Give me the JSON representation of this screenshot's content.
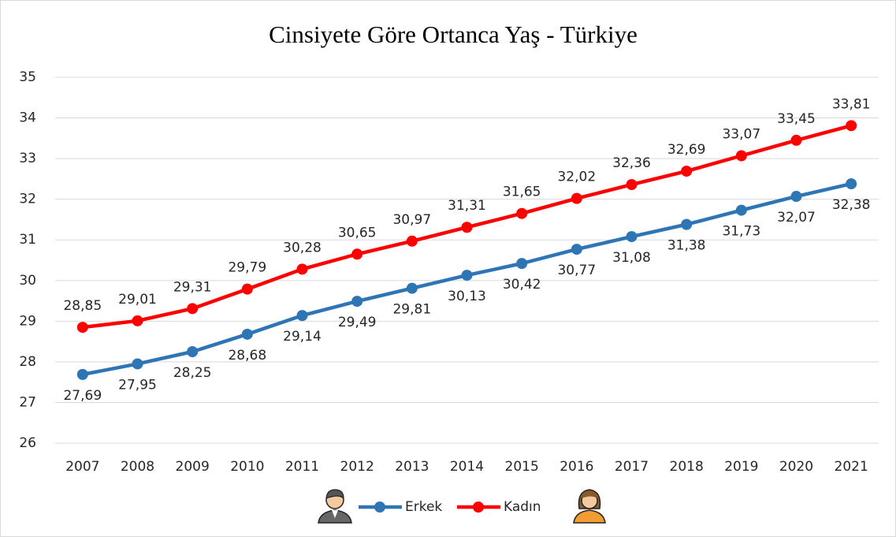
{
  "chart_data": {
    "type": "line",
    "title": "Cinsiyete Göre Ortanca Yaş - Türkiye",
    "categories": [
      "2007",
      "2008",
      "2009",
      "2010",
      "2011",
      "2012",
      "2013",
      "2014",
      "2015",
      "2016",
      "2017",
      "2018",
      "2019",
      "2020",
      "2021"
    ],
    "series": [
      {
        "name": "Erkek",
        "color": "#2e75b6",
        "values": [
          27.69,
          27.95,
          28.25,
          28.68,
          29.14,
          29.49,
          29.81,
          30.13,
          30.42,
          30.77,
          31.08,
          31.38,
          31.73,
          32.07,
          32.38
        ],
        "value_labels": [
          "27,69",
          "27,95",
          "28,25",
          "28,68",
          "29,14",
          "29,49",
          "29,81",
          "30,13",
          "30,42",
          "30,77",
          "31,08",
          "31,38",
          "31,73",
          "32,07",
          "32,38"
        ]
      },
      {
        "name": "Kadın",
        "color": "#ff0000",
        "values": [
          28.85,
          29.01,
          29.31,
          29.79,
          30.28,
          30.65,
          30.97,
          31.31,
          31.65,
          32.02,
          32.36,
          32.69,
          33.07,
          33.45,
          33.81
        ],
        "value_labels": [
          "28,85",
          "29,01",
          "29,31",
          "29,79",
          "30,28",
          "30,65",
          "30,97",
          "31,31",
          "31,65",
          "32,02",
          "32,36",
          "32,69",
          "33,07",
          "33,45",
          "33,81"
        ]
      }
    ],
    "ylim": [
      26,
      35
    ],
    "yticks": [
      26,
      27,
      28,
      29,
      30,
      31,
      32,
      33,
      34,
      35
    ],
    "grid": true,
    "legend": "bottom"
  }
}
